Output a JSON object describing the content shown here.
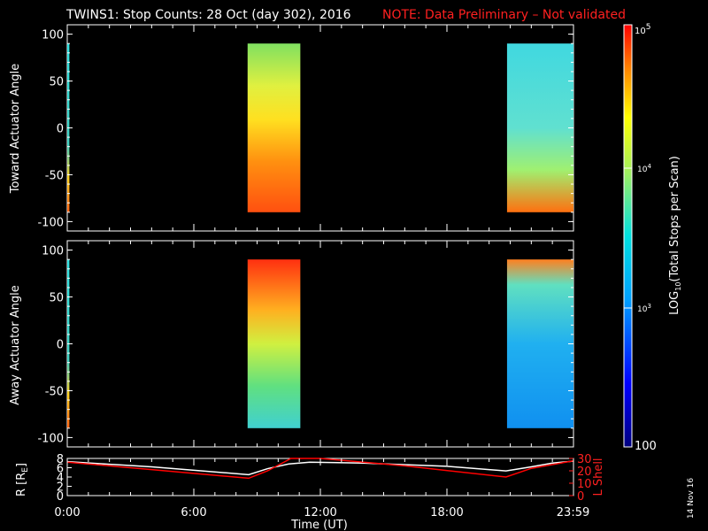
{
  "title": {
    "main": "TWINS1: Stop Counts: 28 Oct (day 302), 2016",
    "note": "NOTE: Data Preliminary – Not validated",
    "note_color": "#ff2020"
  },
  "date_stamp": "14 Nov 16",
  "chart_data": [
    {
      "type": "heatmap",
      "panel": "toward",
      "ylabel": "Toward Actuator Angle",
      "ylim": [
        -110,
        110
      ],
      "yticks": [
        100,
        50,
        0,
        -50,
        -100
      ],
      "xlim": [
        0,
        24
      ],
      "data_blocks": [
        {
          "t_start": 0.0,
          "t_end": 0.1,
          "level": 3.4
        },
        {
          "t_start": 8.55,
          "t_end": 11.05,
          "level": 4.2
        },
        {
          "t_start": 20.85,
          "t_end": 24.0,
          "level": 3.0
        }
      ]
    },
    {
      "type": "heatmap",
      "panel": "away",
      "ylabel": "Away Actuator Angle",
      "ylim": [
        -110,
        110
      ],
      "yticks": [
        100,
        50,
        0,
        -50,
        -100
      ],
      "xlim": [
        0,
        24
      ],
      "data_blocks": [
        {
          "t_start": 0.0,
          "t_end": 0.1,
          "level": 3.3
        },
        {
          "t_start": 8.55,
          "t_end": 11.05,
          "level": 4.0
        },
        {
          "t_start": 20.85,
          "t_end": 24.0,
          "level": 2.8
        }
      ]
    },
    {
      "type": "line",
      "panel": "orbit",
      "ylabel": "R [R",
      "ylabel_sub": "E",
      "ylabel_end": "]",
      "ylim": [
        0,
        8
      ],
      "yticks": [
        0,
        2,
        4,
        6,
        8
      ],
      "y2label": "L Shell",
      "y2lim": [
        0,
        30
      ],
      "y2ticks": [
        0,
        10,
        20,
        30
      ],
      "xlabel": "Time (UT)",
      "xticks": [
        "0:00",
        "6:00",
        "12:00",
        "18:00",
        "23:59"
      ],
      "xtick_values": [
        0,
        6,
        12,
        18,
        23.98
      ],
      "series": [
        {
          "color": "#ffffff",
          "x": [
            0,
            4,
            8.6,
            9.5,
            10.5,
            11.5,
            14,
            18,
            20.8,
            22,
            23,
            23.98
          ],
          "y": [
            7.3,
            6.2,
            4.5,
            5.8,
            6.8,
            7.2,
            7.0,
            6.3,
            5.3,
            6.2,
            7.0,
            7.4
          ]
        },
        {
          "color": "#ff0000",
          "x": [
            0,
            4,
            8.6,
            9.5,
            10.5,
            10.6,
            12,
            16,
            20.8,
            22,
            23.98
          ],
          "y": [
            27,
            21,
            14,
            20,
            29,
            30,
            30,
            24,
            15,
            22,
            28
          ]
        }
      ]
    }
  ],
  "colorbar": {
    "label_pre": "LOG",
    "label_sub": "10",
    "label_post": "(Total Stops per Scan)",
    "tick_top": "10",
    "tick_top_sup": "5",
    "tick_mid": "10",
    "tick_mid_sup": "4",
    "tick_low": "10",
    "tick_low_sup": "3",
    "tick_bottom": "100"
  }
}
